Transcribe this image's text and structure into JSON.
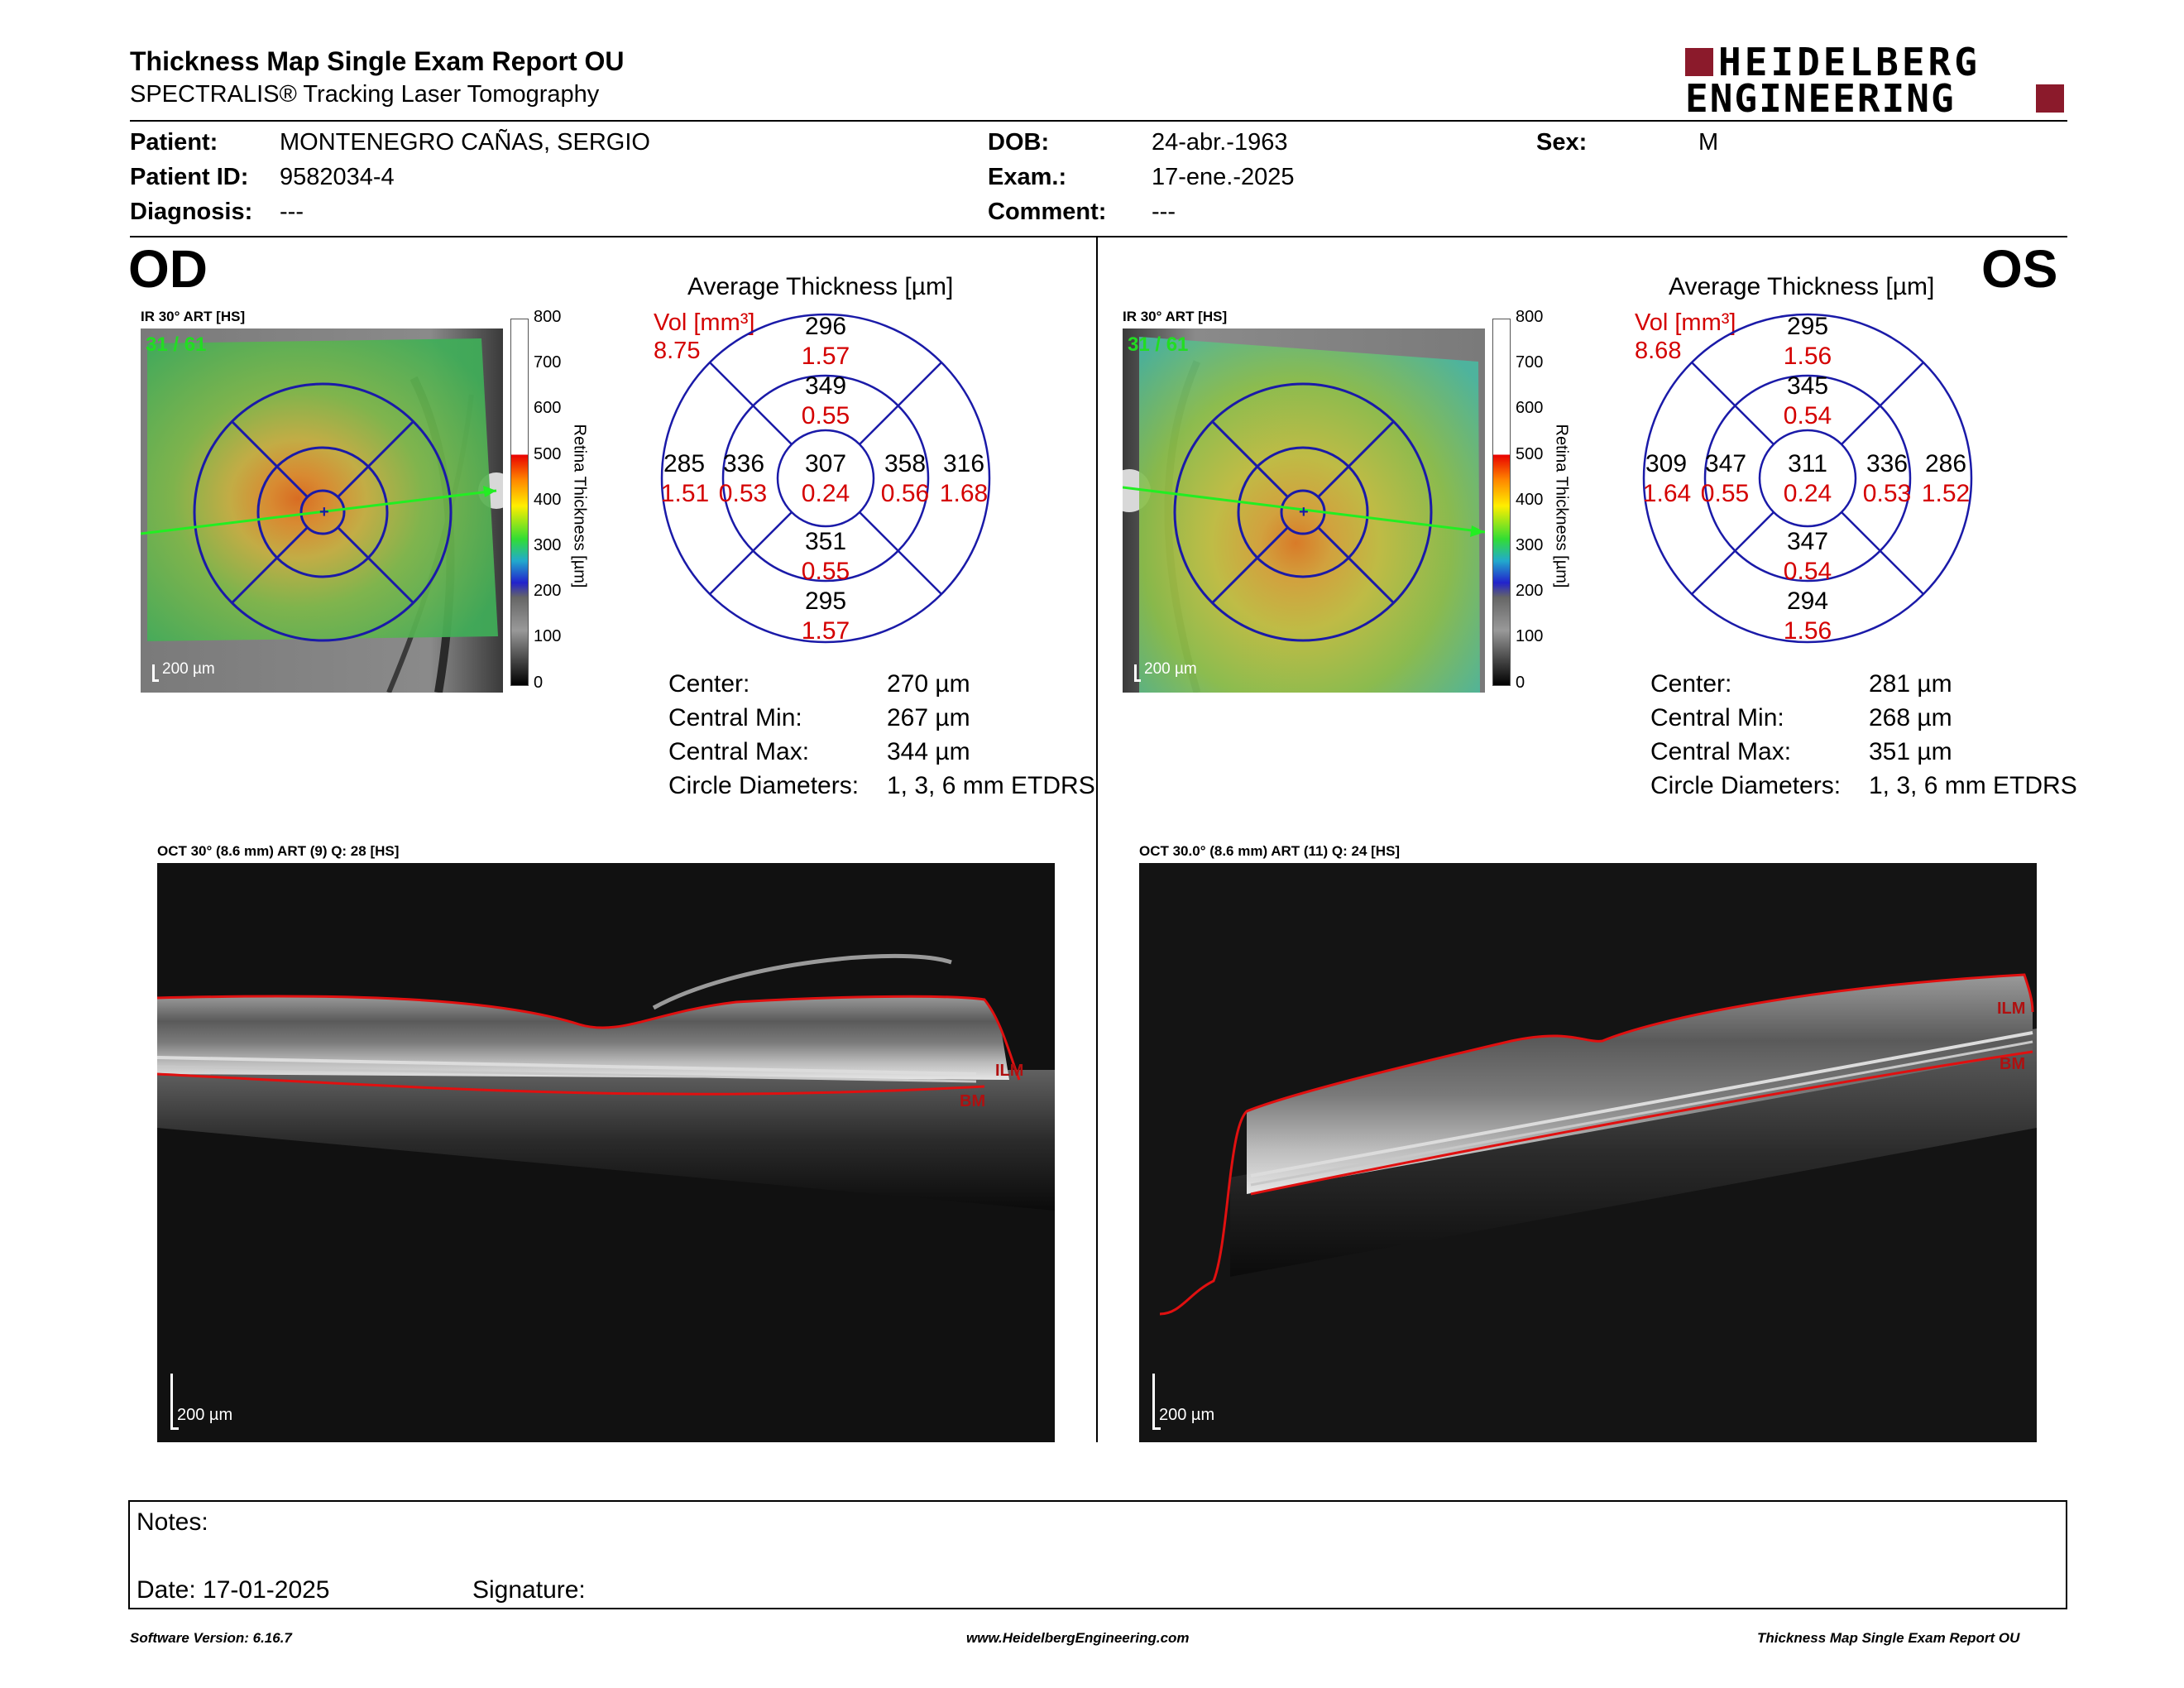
{
  "header": {
    "title": "Thickness Map Single Exam Report OU",
    "subtitle": "SPECTRALIS® Tracking Laser Tomography",
    "brand_line1": "HEIDELBERG",
    "brand_line2": "ENGINEERING",
    "brand_color": "#8b1a2b"
  },
  "patient": {
    "patient_label": "Patient:",
    "patient_value": "MONTENEGRO CAÑAS, SERGIO",
    "id_label": "Patient ID:",
    "id_value": "9582034-4",
    "diagnosis_label": "Diagnosis:",
    "diagnosis_value": "---",
    "dob_label": "DOB:",
    "dob_value": "24-abr.-1963",
    "exam_label": "Exam.:",
    "exam_value": "17-ene.-2025",
    "comment_label": "Comment:",
    "comment_value": "---",
    "sex_label": "Sex:",
    "sex_value": "M"
  },
  "od": {
    "eye": "OD",
    "ir_label": "IR 30° ART [HS]",
    "frame": "31 / 61",
    "scale": "200 µm",
    "colorbar_ticks": [
      "800",
      "700",
      "600",
      "500",
      "400",
      "300",
      "200",
      "100",
      "0"
    ],
    "colorbar_title": "Retina Thickness [µm]",
    "avg_title": "Average Thickness [µm]",
    "vol_label": "Vol [mm³]",
    "vol_total": "8.75",
    "grid": {
      "outer_top_t": "296",
      "outer_top_v": "1.57",
      "inner_top_t": "349",
      "inner_top_v": "0.55",
      "outer_left_t": "285",
      "outer_left_v": "1.51",
      "inner_left_t": "336",
      "inner_left_v": "0.53",
      "center_t": "307",
      "center_v": "0.24",
      "inner_right_t": "358",
      "inner_right_v": "0.56",
      "outer_right_t": "316",
      "outer_right_v": "1.68",
      "inner_bottom_t": "351",
      "inner_bottom_v": "0.55",
      "outer_bottom_t": "295",
      "outer_bottom_v": "1.57"
    },
    "stats": {
      "center_label": "Center:",
      "center_value": "270 µm",
      "min_label": "Central Min:",
      "min_value": "267 µm",
      "max_label": "Central Max:",
      "max_value": "344 µm",
      "diam_label": "Circle Diameters:",
      "diam_value": "1, 3, 6 mm ETDRS"
    },
    "oct_label": "OCT 30° (8.6 mm) ART (9) Q: 28 [HS]",
    "oct_scale": "200 µm",
    "ilm": "ILM",
    "bm": "BM"
  },
  "os": {
    "eye": "OS",
    "ir_label": "IR 30° ART [HS]",
    "frame": "31 / 61",
    "scale": "200 µm",
    "colorbar_ticks": [
      "800",
      "700",
      "600",
      "500",
      "400",
      "300",
      "200",
      "100",
      "0"
    ],
    "colorbar_title": "Retina Thickness [µm]",
    "avg_title": "Average Thickness [µm]",
    "vol_label": "Vol [mm³]",
    "vol_total": "8.68",
    "grid": {
      "outer_top_t": "295",
      "outer_top_v": "1.56",
      "inner_top_t": "345",
      "inner_top_v": "0.54",
      "outer_left_t": "309",
      "outer_left_v": "1.64",
      "inner_left_t": "347",
      "inner_left_v": "0.55",
      "center_t": "311",
      "center_v": "0.24",
      "inner_right_t": "336",
      "inner_right_v": "0.53",
      "outer_right_t": "286",
      "outer_right_v": "1.52",
      "inner_bottom_t": "347",
      "inner_bottom_v": "0.54",
      "outer_bottom_t": "294",
      "outer_bottom_v": "1.56"
    },
    "stats": {
      "center_label": "Center:",
      "center_value": "281 µm",
      "min_label": "Central Min:",
      "min_value": "268 µm",
      "max_label": "Central Max:",
      "max_value": "351 µm",
      "diam_label": "Circle Diameters:",
      "diam_value": "1, 3, 6 mm ETDRS"
    },
    "oct_label": "OCT 30.0° (8.6 mm) ART (11) Q: 24 [HS]",
    "oct_scale": "200 µm",
    "ilm": "ILM",
    "bm": "BM"
  },
  "notes": {
    "notes_label": "Notes:",
    "date_label": "Date: 17-01-2025",
    "signature_label": "Signature:"
  },
  "footer": {
    "software": "Software Version: 6.16.7",
    "website": "www.HeidelbergEngineering.com",
    "report_name": "Thickness Map Single Exam Report OU"
  },
  "colors": {
    "grid_blue": "#1a1aa8",
    "volume_red": "#d40000",
    "frame_green": "#22dd22",
    "segmentation_red": "#e01010"
  }
}
